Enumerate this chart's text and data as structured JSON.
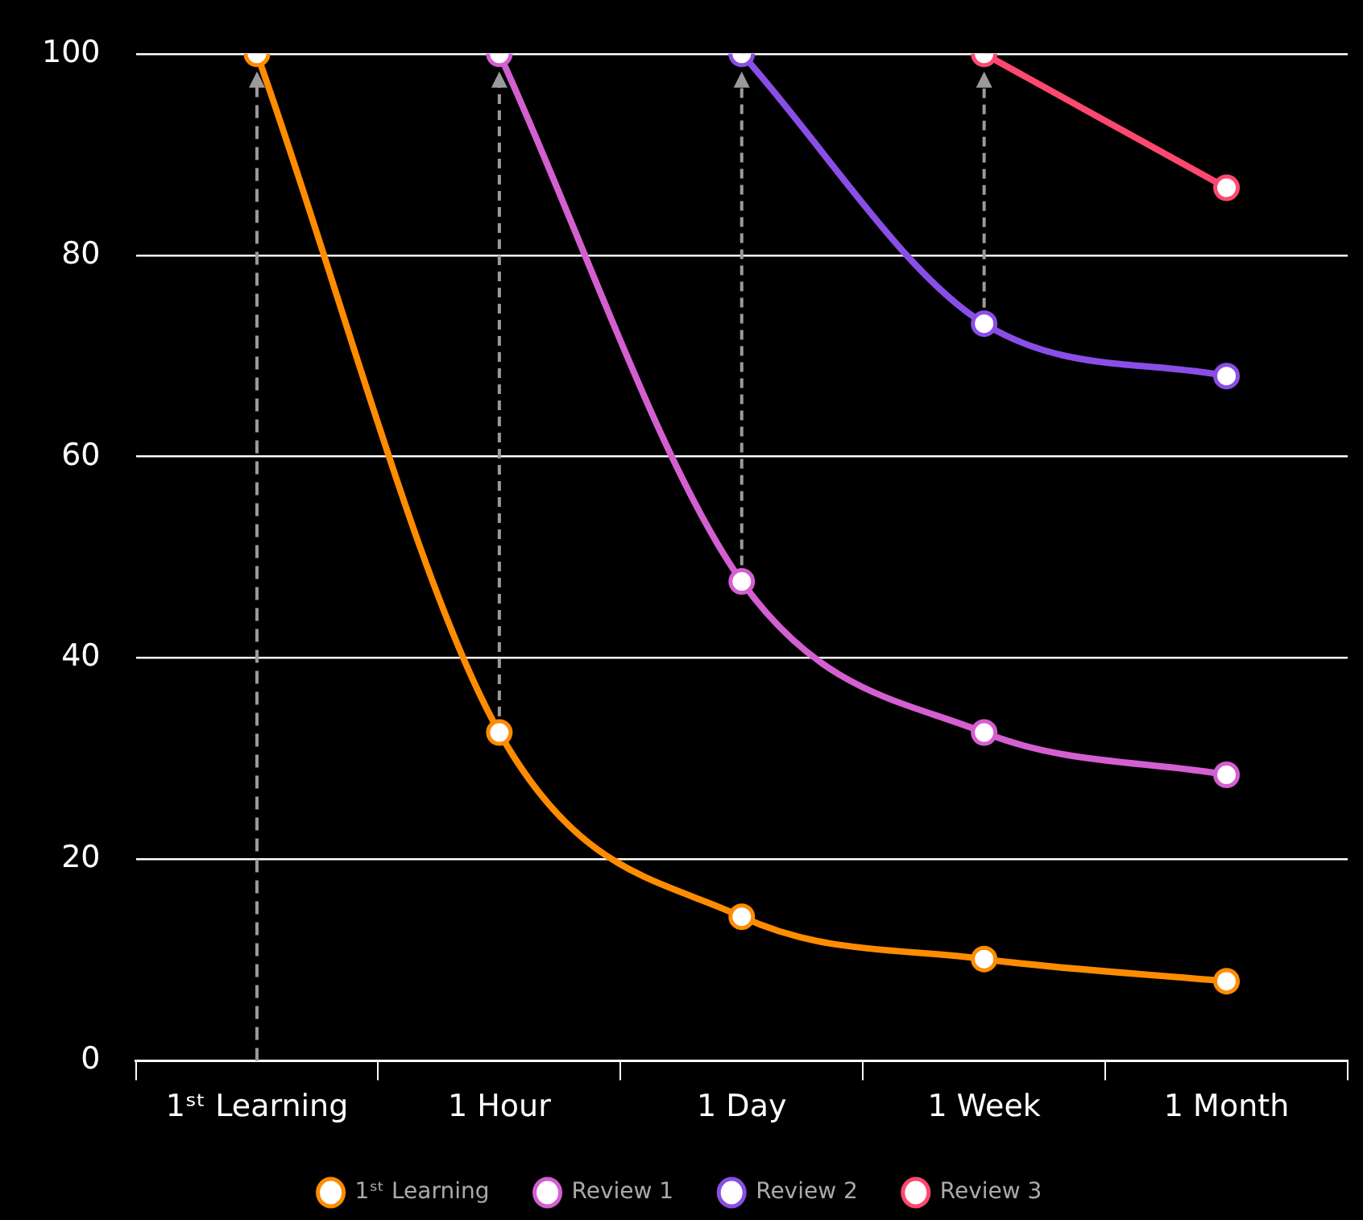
{
  "chart_data": {
    "type": "line",
    "categories": [
      "1ˢᵗ Learning",
      "1 Hour",
      "1 Day",
      "1 Week",
      "1 Month"
    ],
    "series": [
      {
        "name": "1ˢᵗ Learning",
        "color": "#ff8c00",
        "values": [
          100,
          32.6,
          14.3,
          10.1,
          7.9
        ]
      },
      {
        "name": "Review 1",
        "color": "#d45fd0",
        "values": [
          null,
          100,
          47.6,
          32.6,
          28.4
        ]
      },
      {
        "name": "Review 2",
        "color": "#8a4ee8",
        "values": [
          null,
          null,
          100,
          73.2,
          68
        ]
      },
      {
        "name": "Review 3",
        "color": "#ff4870",
        "values": [
          null,
          null,
          null,
          100,
          86.7
        ]
      }
    ],
    "ref_lines": [
      {
        "axis": "x",
        "value": "1ˢᵗ Learning",
        "color": "#9a9a9a",
        "line_style": "dashed"
      }
    ],
    "ylim": [
      0,
      100
    ],
    "yticks": [
      0,
      20,
      40,
      60,
      80,
      100
    ],
    "grid": "y",
    "legend": "bottom",
    "marker": "circle",
    "line_style": "solid"
  }
}
